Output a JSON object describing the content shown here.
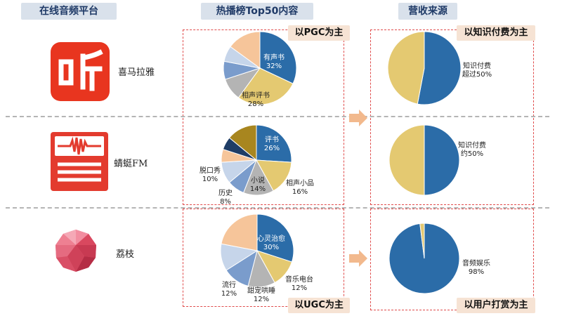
{
  "headers": {
    "platform": "在线音频平台",
    "top50": "热播榜Top50内容",
    "revenue": "营收来源"
  },
  "tags": {
    "pgc": "以PGC为主",
    "ugc": "以UGC为主",
    "paid": "以知识付费为主",
    "tip": "以用户打赏为主"
  },
  "platforms": [
    {
      "name": "喜马拉雅",
      "logo": "ximalaya-logo"
    },
    {
      "name": "蜻蜓FM",
      "logo": "qingting-logo"
    },
    {
      "name": "荔枝",
      "logo": "lizhi-logo"
    }
  ],
  "chart_data": [
    {
      "type": "pie",
      "platform": "喜马拉雅",
      "group": "热播榜Top50内容",
      "slices": [
        {
          "label": "有声书",
          "value": 32,
          "color": "#2b6ca8",
          "pct": "32%"
        },
        {
          "label": "相声评书",
          "value": 28,
          "color": "#e4c971",
          "pct": "28%"
        },
        {
          "label": "",
          "value": 10,
          "color": "#b4b4b4"
        },
        {
          "label": "",
          "value": 8,
          "color": "#7a9ccc"
        },
        {
          "label": "",
          "value": 7,
          "color": "#c6d5ea"
        },
        {
          "label": "",
          "value": 15,
          "color": "#f6c59a"
        }
      ]
    },
    {
      "type": "pie",
      "platform": "蜻蜓FM",
      "group": "热播榜Top50内容",
      "slices": [
        {
          "label": "评书",
          "value": 26,
          "color": "#2b6ca8",
          "pct": "26%"
        },
        {
          "label": "相声小品",
          "value": 16,
          "color": "#e4c971",
          "pct": "16%"
        },
        {
          "label": "小说",
          "value": 14,
          "color": "#b4b4b4",
          "pct": "14%"
        },
        {
          "label": "历史",
          "value": 8,
          "color": "#7a9ccc",
          "pct": "8%"
        },
        {
          "label": "脱口秀",
          "value": 10,
          "color": "#c6d5ea",
          "pct": "10%"
        },
        {
          "label": "",
          "value": 6,
          "color": "#f6c59a"
        },
        {
          "label": "",
          "value": 6,
          "color": "#1f3d66"
        },
        {
          "label": "",
          "value": 14,
          "color": "#a8861f"
        }
      ]
    },
    {
      "type": "pie",
      "platform": "荔枝",
      "group": "热播榜Top50内容",
      "slices": [
        {
          "label": "心灵治愈",
          "value": 30,
          "color": "#2b6ca8",
          "pct": "30%"
        },
        {
          "label": "音乐电台",
          "value": 12,
          "color": "#e4c971",
          "pct": "12%"
        },
        {
          "label": "甜宠哄睡",
          "value": 12,
          "color": "#b4b4b4",
          "pct": "12%"
        },
        {
          "label": "流行",
          "value": 12,
          "color": "#7a9ccc",
          "pct": "12%"
        },
        {
          "label": "",
          "value": 12,
          "color": "#c6d5ea"
        },
        {
          "label": "",
          "value": 22,
          "color": "#f6c59a"
        }
      ]
    },
    {
      "type": "pie",
      "platform": "喜马拉雅",
      "group": "营收来源",
      "slices": [
        {
          "label": "知识付费",
          "value": 53,
          "color": "#2b6ca8",
          "pct": "超过50%"
        },
        {
          "label": "",
          "value": 47,
          "color": "#e4c971"
        }
      ]
    },
    {
      "type": "pie",
      "platform": "蜻蜓FM",
      "group": "营收来源",
      "slices": [
        {
          "label": "知识付费",
          "value": 50,
          "color": "#2b6ca8",
          "pct": "约50%"
        },
        {
          "label": "",
          "value": 50,
          "color": "#e4c971"
        }
      ]
    },
    {
      "type": "pie",
      "platform": "荔枝",
      "group": "营收来源",
      "slices": [
        {
          "label": "音频娱乐",
          "value": 98,
          "color": "#2b6ca8",
          "pct": "98%"
        },
        {
          "label": "",
          "value": 2,
          "color": "#e4c971"
        }
      ]
    }
  ]
}
